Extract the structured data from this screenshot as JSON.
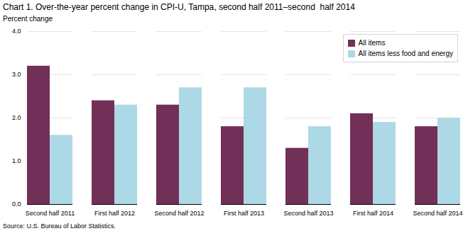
{
  "chart_data": {
    "type": "bar",
    "title": "Chart 1. Over-the-year percent change in CPI-U, Tampa, second half 2011–second  half 2014",
    "ylabel": "Percent change",
    "source": "Source: U.S. Bureau of Labor Statistics.",
    "categories": [
      "Second half 2011",
      "First half 2012",
      "Second half 2012",
      "First half 2013",
      "Second half 2013",
      "First half 2014",
      "Second half 2014"
    ],
    "series": [
      {
        "name": "All items",
        "color": "#722F57",
        "values": [
          3.2,
          2.4,
          2.3,
          1.8,
          1.3,
          2.1,
          1.8
        ]
      },
      {
        "name": "All items less food and energy",
        "color": "#ADD8E6",
        "values": [
          1.6,
          2.3,
          2.7,
          2.7,
          1.8,
          1.9,
          2.0
        ]
      }
    ],
    "ylim": [
      0.0,
      4.0
    ],
    "yticks": [
      {
        "value": 0,
        "label": "0.0"
      },
      {
        "value": 1,
        "label": "1.0"
      },
      {
        "value": 2,
        "label": "2.0"
      },
      {
        "value": 3,
        "label": "3.0"
      },
      {
        "value": 4,
        "label": "4.0"
      }
    ],
    "grid": true,
    "legend": "upper right"
  }
}
